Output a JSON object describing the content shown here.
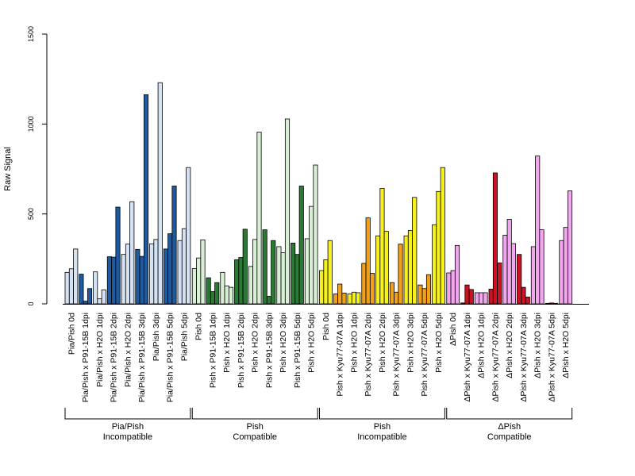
{
  "chart_data": {
    "type": "bar",
    "title": "",
    "xlabel": "",
    "ylabel": "Raw Signal",
    "ylim": [
      0,
      1500
    ],
    "yticks": [
      0,
      500,
      1000,
      1500
    ],
    "grid": false,
    "legend": "none",
    "groups": [
      {
        "name": "Pia/Pish",
        "subtitle": "Incompatible",
        "dark_color": "#1e5aa0",
        "light_color": "#d4e2f4",
        "categories": [
          {
            "label": "Pia/Pish 0d",
            "dark": false,
            "values": [
              175,
              195,
              305
            ]
          },
          {
            "label": "Pia/Pish x P91-15B 1dpi",
            "dark": true,
            "values": [
              165,
              15,
              85
            ]
          },
          {
            "label": "Pia/Pish x H2O 1dpi",
            "dark": false,
            "values": [
              178,
              28,
              78
            ]
          },
          {
            "label": "Pia/Pish x P91-15B 2dpi",
            "dark": true,
            "values": [
              262,
              260,
              538
            ]
          },
          {
            "label": "Pia/Pish x H2O 2dpi",
            "dark": false,
            "values": [
              275,
              332,
              568
            ]
          },
          {
            "label": "Pia/Pish x P91-15B 3dpi",
            "dark": true,
            "values": [
              303,
              264,
              1163
            ]
          },
          {
            "label": "Pia/Pish 3dpi",
            "dark": false,
            "values": [
              334,
              358,
              1230
            ]
          },
          {
            "label": "Pia/Pish x P91-15B 5dpi",
            "dark": true,
            "values": [
              305,
              390,
              655
            ]
          },
          {
            "label": "Pia/Pish 5dpi",
            "dark": false,
            "values": [
              352,
              418,
              758
            ]
          }
        ]
      },
      {
        "name": "Pish",
        "subtitle": "Compatible",
        "dark_color": "#2a7a36",
        "light_color": "#d9f0d6",
        "categories": [
          {
            "label": "Pish 0d",
            "dark": false,
            "values": [
              196,
              255,
              356
            ]
          },
          {
            "label": "Pish x P91-15B 1dpi",
            "dark": true,
            "values": [
              145,
              68,
              118
            ]
          },
          {
            "label": "Pish x H2O 1dpi",
            "dark": false,
            "values": [
              175,
              100,
              92
            ]
          },
          {
            "label": "Pish x P91-15B 2dpi",
            "dark": true,
            "values": [
              245,
              258,
              415
            ]
          },
          {
            "label": "Pish x H2O 2dpi",
            "dark": false,
            "values": [
              208,
              358,
              955
            ]
          },
          {
            "label": "Pish x P91-15B 3dpi",
            "dark": true,
            "values": [
              412,
              42,
              352
            ]
          },
          {
            "label": "Pish x H2O 3dpi",
            "dark": false,
            "values": [
              318,
              284,
              1028
            ]
          },
          {
            "label": "Pish x P91-15B 5dpi",
            "dark": true,
            "values": [
              338,
              275,
              655
            ]
          },
          {
            "label": "Pish x H2O 5dpi",
            "dark": false,
            "values": [
              362,
              542,
              772
            ]
          }
        ]
      },
      {
        "name": "Pish",
        "subtitle": "Incompatible",
        "dark_color": "#f2a01c",
        "light_color": "#f6f01e",
        "categories": [
          {
            "label": "Pish 0d",
            "dark": false,
            "values": [
              185,
              245,
              352
            ]
          },
          {
            "label": "Pish x Kyu77-07A 1dpi",
            "dark": true,
            "values": [
              55,
              110,
              60
            ]
          },
          {
            "label": "Pish x H2O 1dpi",
            "dark": false,
            "values": [
              55,
              65,
              62
            ]
          },
          {
            "label": "Pish x Kyu77-07A 2dpi",
            "dark": true,
            "values": [
              225,
              478,
              170
            ]
          },
          {
            "label": "Pish x H2O 2dpi",
            "dark": false,
            "values": [
              378,
              642,
              403
            ]
          },
          {
            "label": "Pish x Kyu77-07A 3dpi",
            "dark": true,
            "values": [
              118,
              65,
              332
            ]
          },
          {
            "label": "Pish x H2O 3dpi",
            "dark": false,
            "values": [
              378,
              408,
              592
            ]
          },
          {
            "label": "Pish x Kyu77-07A 5dpi",
            "dark": true,
            "values": [
              105,
              85,
              162
            ]
          },
          {
            "label": "Pish x H2O 5dpi",
            "dark": false,
            "values": [
              440,
              625,
              758
            ]
          }
        ]
      },
      {
        "name": "ΔPish",
        "subtitle": "Compatible",
        "dark_color": "#cc1122",
        "light_color": "#f2a6ee",
        "categories": [
          {
            "label": "ΔPish 0d",
            "dark": false,
            "values": [
              172,
              185,
              325
            ]
          },
          {
            "label": "ΔPish x Kyu77-07A 1dpi",
            "dark": true,
            "values": [
              5,
              105,
              80
            ]
          },
          {
            "label": "ΔPish x H2O 1dpi",
            "dark": false,
            "values": [
              62,
              62,
              62
            ]
          },
          {
            "label": "ΔPish x Kyu77-07A 2dpi",
            "dark": true,
            "values": [
              82,
              728,
              228
            ]
          },
          {
            "label": "ΔPish x H2O 2dpi",
            "dark": false,
            "values": [
              382,
              470,
              335
            ]
          },
          {
            "label": "ΔPish x Kyu77-07A 3dpi",
            "dark": true,
            "values": [
              275,
              92,
              38
            ]
          },
          {
            "label": "ΔPish x H2O 3dpi",
            "dark": false,
            "values": [
              318,
              822,
              412
            ]
          },
          {
            "label": "ΔPish x Kyu77-07A 5dpi",
            "dark": true,
            "values": [
              3,
              5,
              3
            ]
          },
          {
            "label": "ΔPish x H2O 5dpi",
            "dark": false,
            "values": [
              352,
              425,
              628
            ]
          }
        ]
      }
    ]
  }
}
